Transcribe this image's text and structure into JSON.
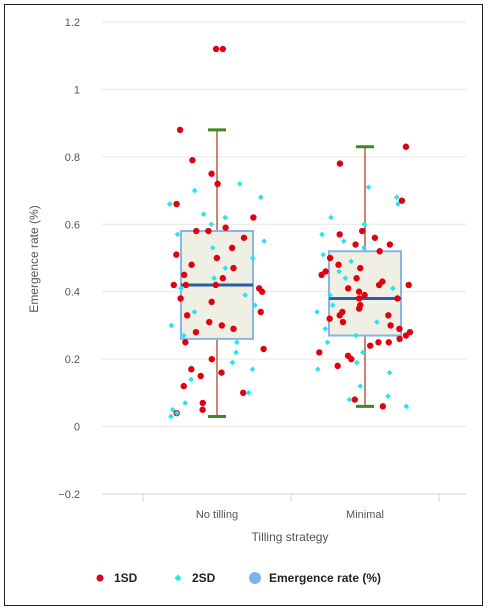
{
  "chart_data": {
    "type": "box",
    "xlabel": "Tilling strategy",
    "ylabel": "Emergence rate (%)",
    "ylim": [
      -0.2,
      1.2
    ],
    "yticks": [
      -0.2,
      0,
      0.2,
      0.4,
      0.6,
      0.8,
      1,
      1.2
    ],
    "ytick_labels": [
      "−0.2",
      "0",
      "0.2",
      "0.4",
      "0.6",
      "0.8",
      "1",
      "1.2"
    ],
    "categories": [
      "No tilling",
      "Minimal"
    ],
    "grid": true,
    "legend_position": "bottom",
    "legend": [
      {
        "label": "1SD",
        "color": "#e0000f",
        "marker": "circle"
      },
      {
        "label": "2SD",
        "color": "#22e5f0",
        "marker": "diamond"
      },
      {
        "label": "Emergence rate (%)",
        "color": "#7db3e8",
        "marker": "circle"
      }
    ],
    "colors": {
      "box_fill": "#efefe4",
      "box_stroke": "#8ab4e6",
      "median": "#2a5ea8",
      "whisker": "#c05a3c",
      "whisker_cap": "#3d8a1f"
    },
    "boxes": [
      {
        "category": "No tilling",
        "min": 0.03,
        "q1": 0.26,
        "median": 0.42,
        "q3": 0.58,
        "max": 0.88
      },
      {
        "category": "Minimal",
        "min": 0.06,
        "q1": 0.27,
        "median": 0.38,
        "q3": 0.52,
        "max": 0.83
      }
    ],
    "series": [
      {
        "name": "1SD",
        "points": [
          [
            "No tilling",
            1.12
          ],
          [
            "No tilling",
            1.12
          ],
          [
            "No tilling",
            0.88
          ],
          [
            "No tilling",
            0.79
          ],
          [
            "No tilling",
            0.75
          ],
          [
            "No tilling",
            0.72
          ],
          [
            "No tilling",
            0.66
          ],
          [
            "No tilling",
            0.62
          ],
          [
            "No tilling",
            0.59
          ],
          [
            "No tilling",
            0.58
          ],
          [
            "No tilling",
            0.58
          ],
          [
            "No tilling",
            0.56
          ],
          [
            "No tilling",
            0.53
          ],
          [
            "No tilling",
            0.51
          ],
          [
            "No tilling",
            0.5
          ],
          [
            "No tilling",
            0.48
          ],
          [
            "No tilling",
            0.47
          ],
          [
            "No tilling",
            0.45
          ],
          [
            "No tilling",
            0.44
          ],
          [
            "No tilling",
            0.42
          ],
          [
            "No tilling",
            0.42
          ],
          [
            "No tilling",
            0.42
          ],
          [
            "No tilling",
            0.41
          ],
          [
            "No tilling",
            0.4
          ],
          [
            "No tilling",
            0.38
          ],
          [
            "No tilling",
            0.37
          ],
          [
            "No tilling",
            0.34
          ],
          [
            "No tilling",
            0.33
          ],
          [
            "No tilling",
            0.31
          ],
          [
            "No tilling",
            0.3
          ],
          [
            "No tilling",
            0.29
          ],
          [
            "No tilling",
            0.28
          ],
          [
            "No tilling",
            0.25
          ],
          [
            "No tilling",
            0.23
          ],
          [
            "No tilling",
            0.2
          ],
          [
            "No tilling",
            0.17
          ],
          [
            "No tilling",
            0.16
          ],
          [
            "No tilling",
            0.15
          ],
          [
            "No tilling",
            0.12
          ],
          [
            "No tilling",
            0.1
          ],
          [
            "No tilling",
            0.07
          ],
          [
            "No tilling",
            0.05
          ],
          [
            "No tilling",
            0.04
          ],
          [
            "Minimal",
            0.83
          ],
          [
            "Minimal",
            0.78
          ],
          [
            "Minimal",
            0.67
          ],
          [
            "Minimal",
            0.58
          ],
          [
            "Minimal",
            0.57
          ],
          [
            "Minimal",
            0.56
          ],
          [
            "Minimal",
            0.54
          ],
          [
            "Minimal",
            0.54
          ],
          [
            "Minimal",
            0.52
          ],
          [
            "Minimal",
            0.5
          ],
          [
            "Minimal",
            0.48
          ],
          [
            "Minimal",
            0.47
          ],
          [
            "Minimal",
            0.46
          ],
          [
            "Minimal",
            0.45
          ],
          [
            "Minimal",
            0.44
          ],
          [
            "Minimal",
            0.43
          ],
          [
            "Minimal",
            0.42
          ],
          [
            "Minimal",
            0.42
          ],
          [
            "Minimal",
            0.41
          ],
          [
            "Minimal",
            0.4
          ],
          [
            "Minimal",
            0.39
          ],
          [
            "Minimal",
            0.38
          ],
          [
            "Minimal",
            0.38
          ],
          [
            "Minimal",
            0.36
          ],
          [
            "Minimal",
            0.35
          ],
          [
            "Minimal",
            0.34
          ],
          [
            "Minimal",
            0.33
          ],
          [
            "Minimal",
            0.33
          ],
          [
            "Minimal",
            0.32
          ],
          [
            "Minimal",
            0.31
          ],
          [
            "Minimal",
            0.3
          ],
          [
            "Minimal",
            0.29
          ],
          [
            "Minimal",
            0.28
          ],
          [
            "Minimal",
            0.27
          ],
          [
            "Minimal",
            0.26
          ],
          [
            "Minimal",
            0.25
          ],
          [
            "Minimal",
            0.25
          ],
          [
            "Minimal",
            0.24
          ],
          [
            "Minimal",
            0.22
          ],
          [
            "Minimal",
            0.21
          ],
          [
            "Minimal",
            0.2
          ],
          [
            "Minimal",
            0.18
          ],
          [
            "Minimal",
            0.08
          ],
          [
            "Minimal",
            0.06
          ]
        ]
      },
      {
        "name": "2SD",
        "points": [
          [
            "No tilling",
            0.72
          ],
          [
            "No tilling",
            0.7
          ],
          [
            "No tilling",
            0.68
          ],
          [
            "No tilling",
            0.66
          ],
          [
            "No tilling",
            0.63
          ],
          [
            "No tilling",
            0.62
          ],
          [
            "No tilling",
            0.6
          ],
          [
            "No tilling",
            0.57
          ],
          [
            "No tilling",
            0.55
          ],
          [
            "No tilling",
            0.53
          ],
          [
            "No tilling",
            0.5
          ],
          [
            "No tilling",
            0.47
          ],
          [
            "No tilling",
            0.44
          ],
          [
            "No tilling",
            0.41
          ],
          [
            "No tilling",
            0.39
          ],
          [
            "No tilling",
            0.36
          ],
          [
            "No tilling",
            0.34
          ],
          [
            "No tilling",
            0.3
          ],
          [
            "No tilling",
            0.27
          ],
          [
            "No tilling",
            0.25
          ],
          [
            "No tilling",
            0.22
          ],
          [
            "No tilling",
            0.19
          ],
          [
            "No tilling",
            0.17
          ],
          [
            "No tilling",
            0.14
          ],
          [
            "No tilling",
            0.1
          ],
          [
            "No tilling",
            0.07
          ],
          [
            "No tilling",
            0.05
          ],
          [
            "No tilling",
            0.04
          ],
          [
            "No tilling",
            0.03
          ],
          [
            "Minimal",
            0.71
          ],
          [
            "Minimal",
            0.68
          ],
          [
            "Minimal",
            0.66
          ],
          [
            "Minimal",
            0.62
          ],
          [
            "Minimal",
            0.6
          ],
          [
            "Minimal",
            0.57
          ],
          [
            "Minimal",
            0.55
          ],
          [
            "Minimal",
            0.53
          ],
          [
            "Minimal",
            0.51
          ],
          [
            "Minimal",
            0.49
          ],
          [
            "Minimal",
            0.46
          ],
          [
            "Minimal",
            0.44
          ],
          [
            "Minimal",
            0.41
          ],
          [
            "Minimal",
            0.39
          ],
          [
            "Minimal",
            0.36
          ],
          [
            "Minimal",
            0.34
          ],
          [
            "Minimal",
            0.31
          ],
          [
            "Minimal",
            0.29
          ],
          [
            "Minimal",
            0.27
          ],
          [
            "Minimal",
            0.25
          ],
          [
            "Minimal",
            0.22
          ],
          [
            "Minimal",
            0.19
          ],
          [
            "Minimal",
            0.17
          ],
          [
            "Minimal",
            0.16
          ],
          [
            "Minimal",
            0.12
          ],
          [
            "Minimal",
            0.09
          ],
          [
            "Minimal",
            0.08
          ],
          [
            "Minimal",
            0.06
          ]
        ]
      }
    ]
  }
}
